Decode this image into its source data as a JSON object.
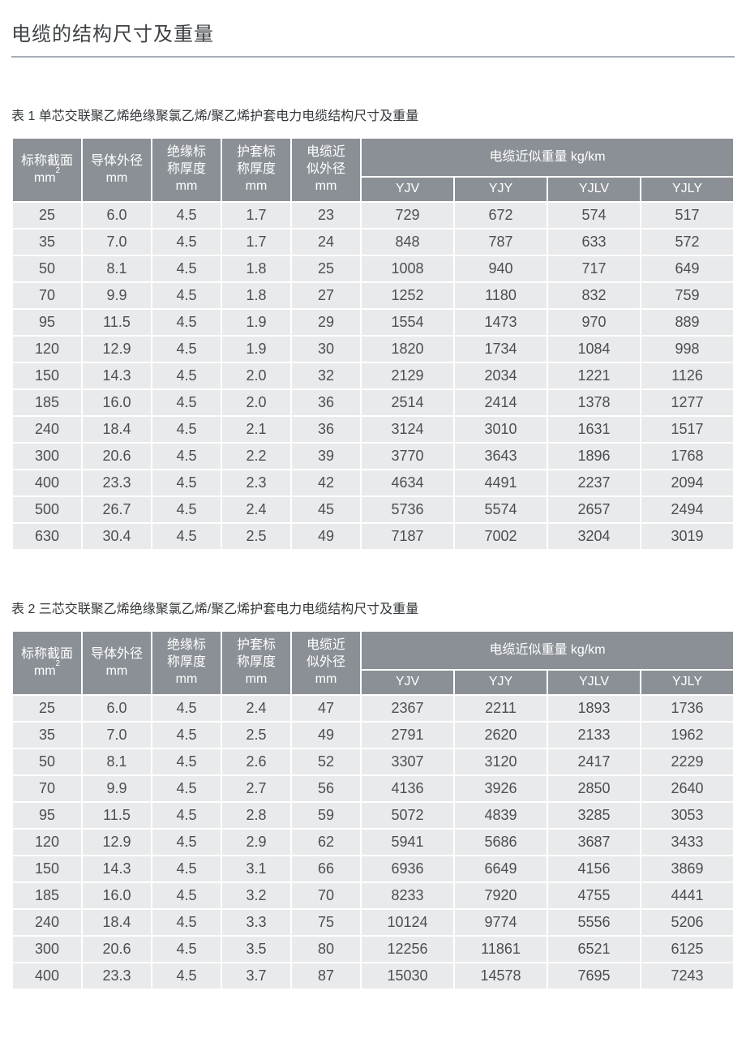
{
  "page": {
    "title": "电缆的结构尺寸及重量"
  },
  "columns": {
    "nominal_section": {
      "line1": "标称截面",
      "unit": "mm",
      "sup": "2"
    },
    "conductor_od": {
      "line1": "导体外径",
      "unit": "mm"
    },
    "insulation": {
      "line1": "绝缘标",
      "line2": "称厚度",
      "unit": "mm"
    },
    "sheath": {
      "line1": "护套标",
      "line2": "称厚度",
      "unit": "mm"
    },
    "approx_od": {
      "line1": "电缆近",
      "line2": "似外径",
      "unit": "mm"
    },
    "weight_group": "电缆近似重量 kg/km",
    "weight_cols": [
      "YJV",
      "YJY",
      "YJLV",
      "YJLY"
    ]
  },
  "table1": {
    "caption": "表 1 单芯交联聚乙烯绝缘聚氯乙烯/聚乙烯护套电力电缆结构尺寸及重量",
    "rows": [
      [
        "25",
        "6.0",
        "4.5",
        "1.7",
        "23",
        "729",
        "672",
        "574",
        "517"
      ],
      [
        "35",
        "7.0",
        "4.5",
        "1.7",
        "24",
        "848",
        "787",
        "633",
        "572"
      ],
      [
        "50",
        "8.1",
        "4.5",
        "1.8",
        "25",
        "1008",
        "940",
        "717",
        "649"
      ],
      [
        "70",
        "9.9",
        "4.5",
        "1.8",
        "27",
        "1252",
        "1180",
        "832",
        "759"
      ],
      [
        "95",
        "11.5",
        "4.5",
        "1.9",
        "29",
        "1554",
        "1473",
        "970",
        "889"
      ],
      [
        "120",
        "12.9",
        "4.5",
        "1.9",
        "30",
        "1820",
        "1734",
        "1084",
        "998"
      ],
      [
        "150",
        "14.3",
        "4.5",
        "2.0",
        "32",
        "2129",
        "2034",
        "1221",
        "1126"
      ],
      [
        "185",
        "16.0",
        "4.5",
        "2.0",
        "36",
        "2514",
        "2414",
        "1378",
        "1277"
      ],
      [
        "240",
        "18.4",
        "4.5",
        "2.1",
        "36",
        "3124",
        "3010",
        "1631",
        "1517"
      ],
      [
        "300",
        "20.6",
        "4.5",
        "2.2",
        "39",
        "3770",
        "3643",
        "1896",
        "1768"
      ],
      [
        "400",
        "23.3",
        "4.5",
        "2.3",
        "42",
        "4634",
        "4491",
        "2237",
        "2094"
      ],
      [
        "500",
        "26.7",
        "4.5",
        "2.4",
        "45",
        "5736",
        "5574",
        "2657",
        "2494"
      ],
      [
        "630",
        "30.4",
        "4.5",
        "2.5",
        "49",
        "7187",
        "7002",
        "3204",
        "3019"
      ]
    ]
  },
  "table2": {
    "caption": "表 2 三芯交联聚乙烯绝缘聚氯乙烯/聚乙烯护套电力电缆结构尺寸及重量",
    "rows": [
      [
        "25",
        "6.0",
        "4.5",
        "2.4",
        "47",
        "2367",
        "2211",
        "1893",
        "1736"
      ],
      [
        "35",
        "7.0",
        "4.5",
        "2.5",
        "49",
        "2791",
        "2620",
        "2133",
        "1962"
      ],
      [
        "50",
        "8.1",
        "4.5",
        "2.6",
        "52",
        "3307",
        "3120",
        "2417",
        "2229"
      ],
      [
        "70",
        "9.9",
        "4.5",
        "2.7",
        "56",
        "4136",
        "3926",
        "2850",
        "2640"
      ],
      [
        "95",
        "11.5",
        "4.5",
        "2.8",
        "59",
        "5072",
        "4839",
        "3285",
        "3053"
      ],
      [
        "120",
        "12.9",
        "4.5",
        "2.9",
        "62",
        "5941",
        "5686",
        "3687",
        "3433"
      ],
      [
        "150",
        "14.3",
        "4.5",
        "3.1",
        "66",
        "6936",
        "6649",
        "4156",
        "3869"
      ],
      [
        "185",
        "16.0",
        "4.5",
        "3.2",
        "70",
        "8233",
        "7920",
        "4755",
        "4441"
      ],
      [
        "240",
        "18.4",
        "4.5",
        "3.3",
        "75",
        "10124",
        "9774",
        "5556",
        "5206"
      ],
      [
        "300",
        "20.6",
        "4.5",
        "3.5",
        "80",
        "12256",
        "11861",
        "6521",
        "6125"
      ],
      [
        "400",
        "23.3",
        "4.5",
        "3.7",
        "87",
        "15030",
        "14578",
        "7695",
        "7243"
      ]
    ]
  },
  "colors": {
    "header_bg": "#8b9096",
    "row_bg": "#e9eaeb",
    "cell_separator": "#ffffff",
    "data_text": "#4b4f53",
    "title_text": "#3d4144",
    "divider": "#a6adb3"
  }
}
